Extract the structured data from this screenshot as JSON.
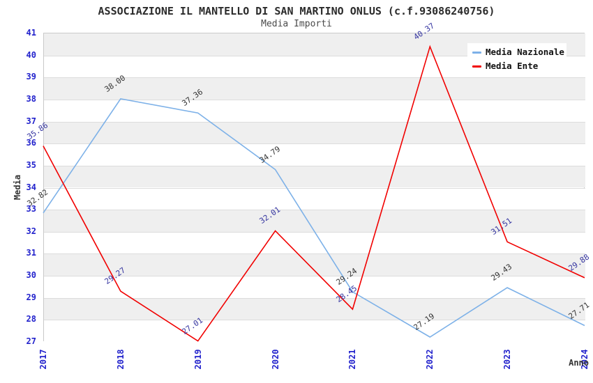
{
  "title": "ASSOCIAZIONE IL MANTELLO DI SAN MARTINO ONLUS (c.f.93086240756)",
  "subtitle": "Media Importi",
  "chart_data": {
    "type": "line",
    "x": [
      "2017",
      "2018",
      "2019",
      "2020",
      "2021",
      "2022",
      "2023",
      "2024"
    ],
    "series": [
      {
        "name": "Media Nazionale",
        "color": "#7db1e8",
        "label_color": "#333333",
        "values": [
          32.82,
          38.0,
          37.36,
          34.79,
          29.24,
          27.19,
          29.43,
          27.71
        ]
      },
      {
        "name": "Media Ente",
        "color": "#f10000",
        "label_color": "#3434a0",
        "values": [
          35.86,
          29.27,
          27.01,
          32.01,
          28.45,
          40.37,
          31.51,
          29.88
        ]
      }
    ],
    "xlabel": "Anno",
    "ylabel": "Media",
    "ylim": [
      27,
      41
    ],
    "ytick_step": 1,
    "value_label_decimals": 2,
    "legend_position": "top-right",
    "grid": "alternating-horizontal-bands",
    "band_colors": [
      "#efefef",
      "#ffffff"
    ],
    "gridline_color": "#dcdcdc",
    "tick_label_color": "#2222cc"
  }
}
